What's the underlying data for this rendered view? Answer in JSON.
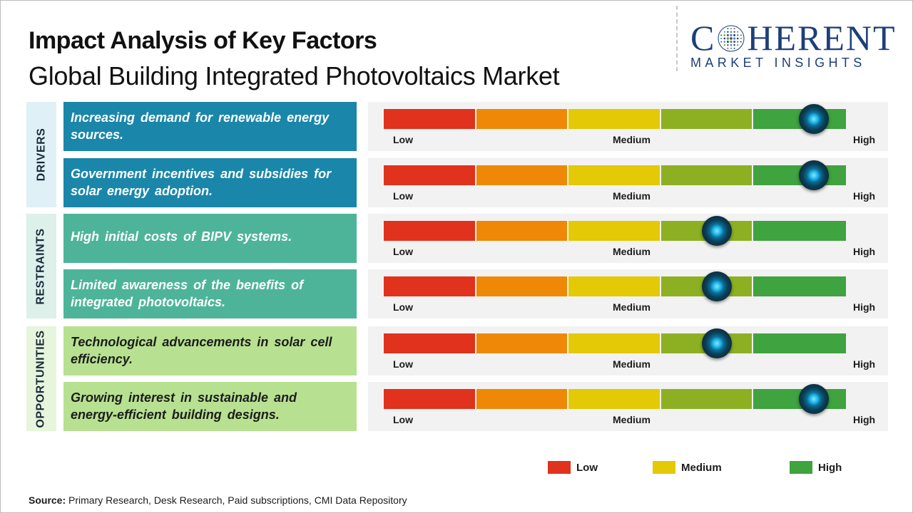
{
  "header": {
    "title": "Impact Analysis of Key Factors",
    "subtitle": "Global Building Integrated Photovoltaics Market"
  },
  "logo": {
    "main_left": "C",
    "main_right": "HERENT",
    "sub": "MARKET INSIGHTS"
  },
  "colors": {
    "low": "#e0321d",
    "low_medium": "#ee8806",
    "medium": "#e3c906",
    "medium_high": "#8db022",
    "high": "#3fa33f",
    "drivers_box": "#1a86aa",
    "restraints_box": "#4db49a",
    "opportunities_box": "#b7e190",
    "drivers_tab": "#dff0f7",
    "restraints_tab": "#ddf0ea",
    "opportunities_tab": "#e6f5dc"
  },
  "chart_data": {
    "type": "gauge",
    "scale": [
      "Low",
      "Medium",
      "High"
    ],
    "levels": 5,
    "categories": [
      {
        "name": "DRIVERS",
        "factors": [
          {
            "text": "Increasing demand for renewable energy sources.",
            "impact": 0.93
          },
          {
            "text": "Government incentives and subsidies for solar energy adoption.",
            "impact": 0.93
          }
        ]
      },
      {
        "name": "RESTRAINTS",
        "factors": [
          {
            "text": "High initial costs of BIPV systems.",
            "impact": 0.72
          },
          {
            "text": "Limited awareness of the benefits of integrated photovoltaics.",
            "impact": 0.72
          }
        ]
      },
      {
        "name": "OPPORTUNITIES",
        "factors": [
          {
            "text": "Technological advancements in solar cell efficiency.",
            "impact": 0.72
          },
          {
            "text": "Growing interest in sustainable and energy-efficient building designs.",
            "impact": 0.93
          }
        ]
      }
    ],
    "legend": [
      {
        "label": "Low",
        "color": "#e0321d"
      },
      {
        "label": "Medium",
        "color": "#e3c906"
      },
      {
        "label": "High",
        "color": "#3fa33f"
      }
    ]
  },
  "footer": {
    "source_label": "Source:",
    "source_text": " Primary Research, Desk Research, Paid subscriptions, CMI Data Repository"
  }
}
